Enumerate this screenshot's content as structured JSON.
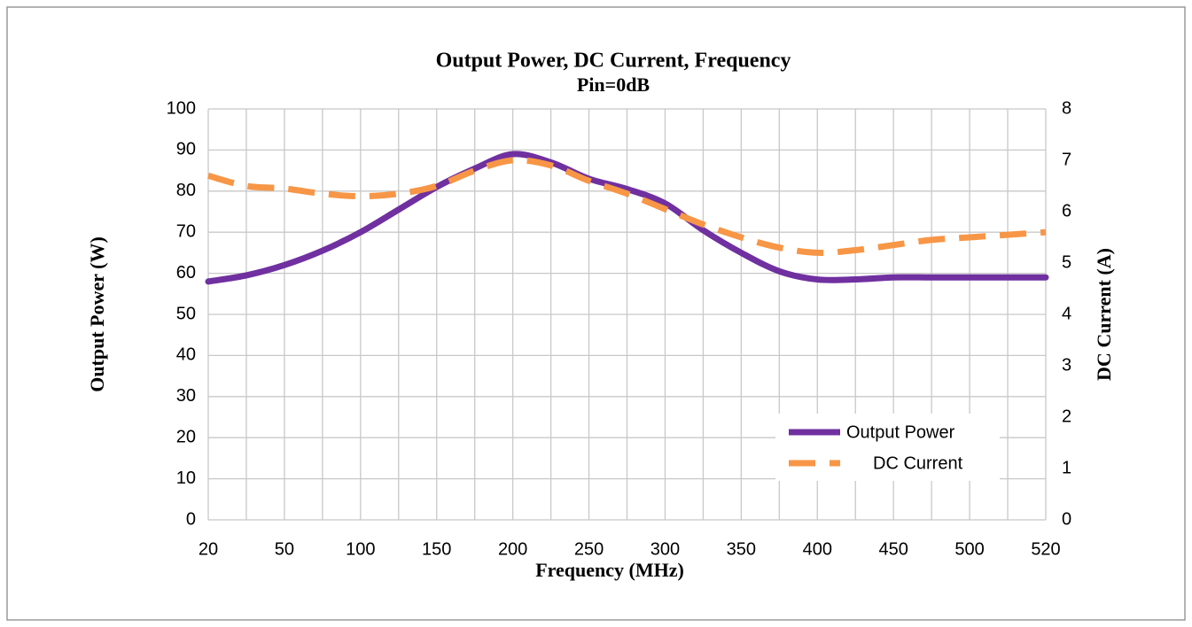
{
  "chart_data": {
    "type": "line",
    "title": "Output Power, DC Current, Frequency",
    "subtitle": "Pin=0dB",
    "x_label": "Frequency (MHz)",
    "y_label": "Output Power (W)",
    "y2_label": "DC Current (A)",
    "categories": [
      "20",
      null,
      "50",
      null,
      "100",
      null,
      "150",
      null,
      "200",
      null,
      "250",
      null,
      "300",
      null,
      "350",
      null,
      "400",
      null,
      "450",
      null,
      "500",
      null,
      "520"
    ],
    "series": [
      {
        "name": "Output Power",
        "color": "#7030a0",
        "dash": false,
        "values": [
          58,
          59.5,
          62,
          65.5,
          70,
          75.5,
          81,
          85.5,
          89,
          87,
          83,
          80.5,
          77,
          70.5,
          65,
          60.5,
          58.5,
          58.5,
          59,
          59,
          59,
          59,
          59
        ]
      },
      {
        "name": "DC Current",
        "color": "#f79646",
        "dash": true,
        "axis": "y2",
        "values": [
          6.7,
          6.5,
          6.45,
          6.35,
          6.3,
          6.35,
          6.5,
          6.8,
          7.0,
          6.9,
          6.6,
          6.35,
          6.05,
          5.75,
          5.5,
          5.3,
          5.2,
          5.25,
          5.35,
          5.45,
          5.5,
          5.55,
          5.6
        ]
      }
    ],
    "ylim": [
      0,
      100
    ],
    "yticks": [
      0,
      10,
      20,
      30,
      40,
      50,
      60,
      70,
      80,
      90,
      100
    ],
    "y2lim": [
      0,
      8
    ],
    "y2ticks": [
      0,
      1,
      2,
      3,
      4,
      5,
      6,
      7,
      8
    ],
    "grid": true,
    "legend": "lower right"
  }
}
